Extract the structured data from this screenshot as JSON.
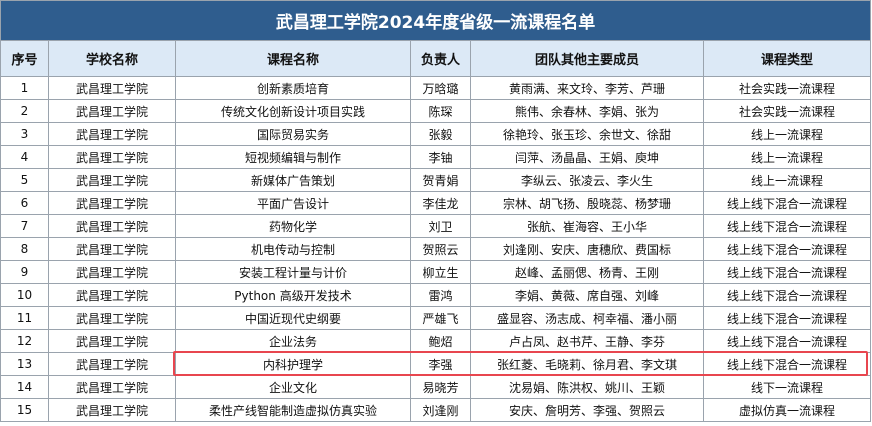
{
  "title": "武昌理工学院2024年度省级一流课程名单",
  "header": [
    "序号",
    "学校名称",
    "课程名称",
    "负责人",
    "团队其他主要成员",
    "课程类型"
  ],
  "rows": [
    [
      "1",
      "武昌理工学院",
      "创新素质培育",
      "万晗璐",
      "黄雨满、来文玲、李芳、芦珊",
      "社会实践一流课程"
    ],
    [
      "2",
      "武昌理工学院",
      "传统文化创新设计项目实践",
      "陈琛",
      "熊伟、余春林、李娟、张为",
      "社会实践一流课程"
    ],
    [
      "3",
      "武昌理工学院",
      "国际贸易实务",
      "张毅",
      "徐艳玲、张玉珍、余世文、徐甜",
      "线上一流课程"
    ],
    [
      "4",
      "武昌理工学院",
      "短视频编辑与制作",
      "李铀",
      "闫萍、汤晶晶、王娟、庾坤",
      "线上一流课程"
    ],
    [
      "5",
      "武昌理工学院",
      "新媒体广告策划",
      "贺青娟",
      "李纵云、张凌云、李火生",
      "线上一流课程"
    ],
    [
      "6",
      "武昌理工学院",
      "平面广告设计",
      "李佳龙",
      "宗林、胡飞扬、殷晓蕊、杨梦珊",
      "线上线下混合一流课程"
    ],
    [
      "7",
      "武昌理工学院",
      "药物化学",
      "刘卫",
      "张航、崔海容、王小华",
      "线上线下混合一流课程"
    ],
    [
      "8",
      "武昌理工学院",
      "机电传动与控制",
      "贺照云",
      "刘逢刚、安庆、唐穗欣、费国标",
      "线上线下混合一流课程"
    ],
    [
      "9",
      "武昌理工学院",
      "安装工程计量与计价",
      "柳立生",
      "赵峰、孟丽偲、杨青、王刚",
      "线上线下混合一流课程"
    ],
    [
      "10",
      "武昌理工学院",
      "Python 高级开发技术",
      "雷鸿",
      "李娟、黄薇、席自强、刘峰",
      "线上线下混合一流课程"
    ],
    [
      "11",
      "武昌理工学院",
      "中国近现代史纲要",
      "严雄飞",
      "盛显容、汤志成、柯幸福、潘小丽",
      "线上线下混合一流课程"
    ],
    [
      "12",
      "武昌理工学院",
      "企业法务",
      "鲍炤",
      "卢占凤、赵书芹、王静、李芬",
      "线上线下混合一流课程"
    ],
    [
      "13",
      "武昌理工学院",
      "内科护理学",
      "李强",
      "张红菱、毛晓莉、徐月君、李文琪",
      "线上线下混合一流课程"
    ],
    [
      "14",
      "武昌理工学院",
      "企业文化",
      "易晓芳",
      "沈易娟、陈洪权、姚川、王颖",
      "线下一流课程"
    ],
    [
      "15",
      "武昌理工学院",
      "柔性产线智能制造虚拟仿真实验",
      "刘逢刚",
      "安庆、詹明芳、李强、贺照云",
      "虚拟仿真一流课程"
    ]
  ]
}
